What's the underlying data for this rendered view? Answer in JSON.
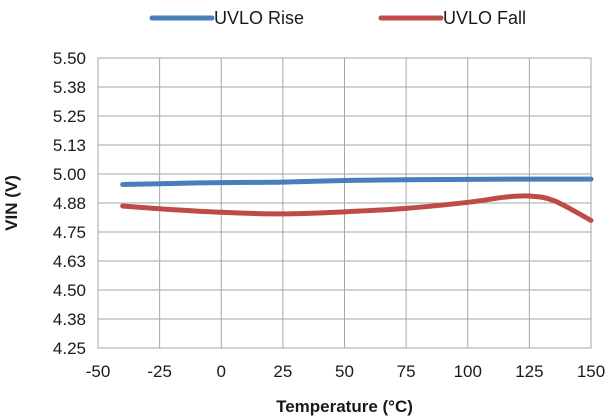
{
  "chart_data": {
    "type": "line",
    "title": "",
    "xlabel": "Temperature (°C)",
    "ylabel": "VIN (V)",
    "xlim": [
      -50,
      150
    ],
    "ylim": [
      4.25,
      5.5
    ],
    "x_ticks": [
      "-50",
      "-25",
      "0",
      "25",
      "50",
      "75",
      "100",
      "125",
      "150"
    ],
    "y_ticks": [
      "4.25",
      "4.38",
      "4.50",
      "4.63",
      "4.75",
      "4.88",
      "5.00",
      "5.13",
      "5.25",
      "5.38",
      "5.50"
    ],
    "grid": true,
    "legend_position": "top",
    "series": [
      {
        "name": "UVLO Rise",
        "color": "#4a7ebb",
        "points": [
          {
            "x": -40,
            "y": 4.955
          },
          {
            "x": -25,
            "y": 4.958
          },
          {
            "x": 0,
            "y": 4.963
          },
          {
            "x": 25,
            "y": 4.965
          },
          {
            "x": 50,
            "y": 4.972
          },
          {
            "x": 75,
            "y": 4.975
          },
          {
            "x": 100,
            "y": 4.977
          },
          {
            "x": 125,
            "y": 4.978
          },
          {
            "x": 150,
            "y": 4.978
          }
        ]
      },
      {
        "name": "UVLO Fall",
        "color": "#be4b48",
        "points": [
          {
            "x": -40,
            "y": 4.862
          },
          {
            "x": -25,
            "y": 4.85
          },
          {
            "x": 0,
            "y": 4.835
          },
          {
            "x": 25,
            "y": 4.828
          },
          {
            "x": 50,
            "y": 4.837
          },
          {
            "x": 75,
            "y": 4.852
          },
          {
            "x": 100,
            "y": 4.878
          },
          {
            "x": 115,
            "y": 4.9
          },
          {
            "x": 125,
            "y": 4.905
          },
          {
            "x": 135,
            "y": 4.885
          },
          {
            "x": 150,
            "y": 4.8
          }
        ]
      }
    ]
  }
}
